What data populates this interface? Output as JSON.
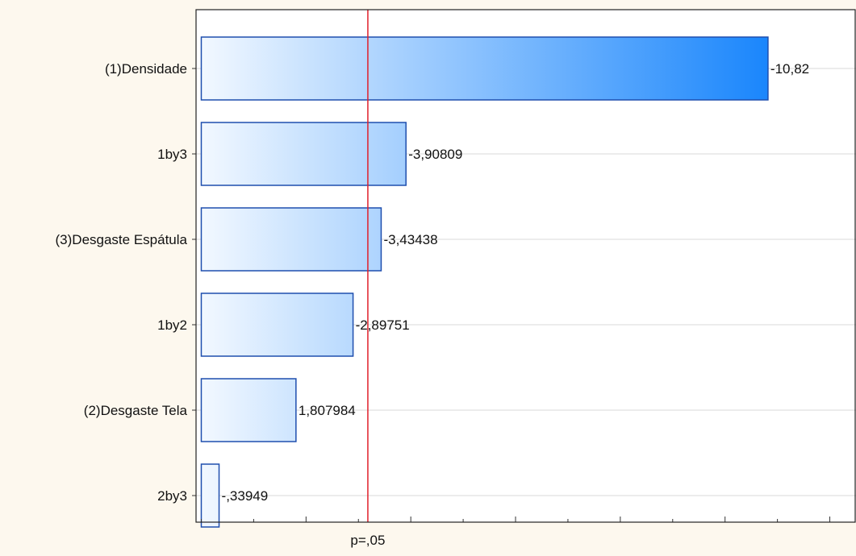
{
  "chart_data": {
    "type": "bar",
    "orientation": "horizontal",
    "title": "",
    "xlabel": "",
    "ylabel": "",
    "categories": [
      "(1)Densidade",
      "1by3",
      "(3)Desgaste Espátula",
      "1by2",
      "(2)Desgaste Tela",
      "2by3"
    ],
    "values": [
      10.82,
      3.90809,
      3.43438,
      2.89751,
      1.807984,
      0.33949
    ],
    "data_labels": [
      "-10,82",
      "-3,90809",
      "-3,43438",
      "-2,89751",
      "1,807984",
      "-,33949"
    ],
    "xlim": [
      -0.1,
      12.5
    ],
    "reference_line": {
      "value": 3.18,
      "label": "p=,05",
      "color": "#e0202a"
    },
    "grid": true,
    "colors": {
      "bar_start": "#f4f9ff",
      "bar_end": "#1a86fc",
      "bar_stroke": "#1f4fae",
      "plot_bg": "#ffffff",
      "page_bg": "#fdf8ee",
      "grid": "#d8d8d8"
    }
  }
}
